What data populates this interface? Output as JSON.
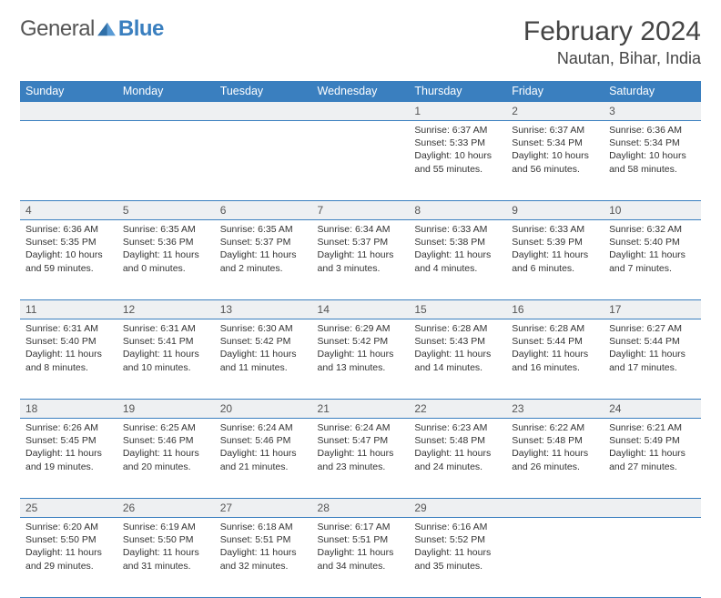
{
  "logo": {
    "text1": "General",
    "text2": "Blue"
  },
  "title": "February 2024",
  "location": "Nautan, Bihar, India",
  "weekdays": [
    "Sunday",
    "Monday",
    "Tuesday",
    "Wednesday",
    "Thursday",
    "Friday",
    "Saturday"
  ],
  "colors": {
    "brand": "#3a7fbf",
    "daybg": "#eef0f2",
    "text": "#333333"
  },
  "layout": {
    "startCol": 4,
    "daysInMonth": 29
  },
  "days": {
    "1": {
      "sunrise": "6:37 AM",
      "sunset": "5:33 PM",
      "daylight": "10 hours and 55 minutes."
    },
    "2": {
      "sunrise": "6:37 AM",
      "sunset": "5:34 PM",
      "daylight": "10 hours and 56 minutes."
    },
    "3": {
      "sunrise": "6:36 AM",
      "sunset": "5:34 PM",
      "daylight": "10 hours and 58 minutes."
    },
    "4": {
      "sunrise": "6:36 AM",
      "sunset": "5:35 PM",
      "daylight": "10 hours and 59 minutes."
    },
    "5": {
      "sunrise": "6:35 AM",
      "sunset": "5:36 PM",
      "daylight": "11 hours and 0 minutes."
    },
    "6": {
      "sunrise": "6:35 AM",
      "sunset": "5:37 PM",
      "daylight": "11 hours and 2 minutes."
    },
    "7": {
      "sunrise": "6:34 AM",
      "sunset": "5:37 PM",
      "daylight": "11 hours and 3 minutes."
    },
    "8": {
      "sunrise": "6:33 AM",
      "sunset": "5:38 PM",
      "daylight": "11 hours and 4 minutes."
    },
    "9": {
      "sunrise": "6:33 AM",
      "sunset": "5:39 PM",
      "daylight": "11 hours and 6 minutes."
    },
    "10": {
      "sunrise": "6:32 AM",
      "sunset": "5:40 PM",
      "daylight": "11 hours and 7 minutes."
    },
    "11": {
      "sunrise": "6:31 AM",
      "sunset": "5:40 PM",
      "daylight": "11 hours and 8 minutes."
    },
    "12": {
      "sunrise": "6:31 AM",
      "sunset": "5:41 PM",
      "daylight": "11 hours and 10 minutes."
    },
    "13": {
      "sunrise": "6:30 AM",
      "sunset": "5:42 PM",
      "daylight": "11 hours and 11 minutes."
    },
    "14": {
      "sunrise": "6:29 AM",
      "sunset": "5:42 PM",
      "daylight": "11 hours and 13 minutes."
    },
    "15": {
      "sunrise": "6:28 AM",
      "sunset": "5:43 PM",
      "daylight": "11 hours and 14 minutes."
    },
    "16": {
      "sunrise": "6:28 AM",
      "sunset": "5:44 PM",
      "daylight": "11 hours and 16 minutes."
    },
    "17": {
      "sunrise": "6:27 AM",
      "sunset": "5:44 PM",
      "daylight": "11 hours and 17 minutes."
    },
    "18": {
      "sunrise": "6:26 AM",
      "sunset": "5:45 PM",
      "daylight": "11 hours and 19 minutes."
    },
    "19": {
      "sunrise": "6:25 AM",
      "sunset": "5:46 PM",
      "daylight": "11 hours and 20 minutes."
    },
    "20": {
      "sunrise": "6:24 AM",
      "sunset": "5:46 PM",
      "daylight": "11 hours and 21 minutes."
    },
    "21": {
      "sunrise": "6:24 AM",
      "sunset": "5:47 PM",
      "daylight": "11 hours and 23 minutes."
    },
    "22": {
      "sunrise": "6:23 AM",
      "sunset": "5:48 PM",
      "daylight": "11 hours and 24 minutes."
    },
    "23": {
      "sunrise": "6:22 AM",
      "sunset": "5:48 PM",
      "daylight": "11 hours and 26 minutes."
    },
    "24": {
      "sunrise": "6:21 AM",
      "sunset": "5:49 PM",
      "daylight": "11 hours and 27 minutes."
    },
    "25": {
      "sunrise": "6:20 AM",
      "sunset": "5:50 PM",
      "daylight": "11 hours and 29 minutes."
    },
    "26": {
      "sunrise": "6:19 AM",
      "sunset": "5:50 PM",
      "daylight": "11 hours and 31 minutes."
    },
    "27": {
      "sunrise": "6:18 AM",
      "sunset": "5:51 PM",
      "daylight": "11 hours and 32 minutes."
    },
    "28": {
      "sunrise": "6:17 AM",
      "sunset": "5:51 PM",
      "daylight": "11 hours and 34 minutes."
    },
    "29": {
      "sunrise": "6:16 AM",
      "sunset": "5:52 PM",
      "daylight": "11 hours and 35 minutes."
    }
  },
  "labels": {
    "sunrise": "Sunrise:",
    "sunset": "Sunset:",
    "daylight": "Daylight:"
  }
}
